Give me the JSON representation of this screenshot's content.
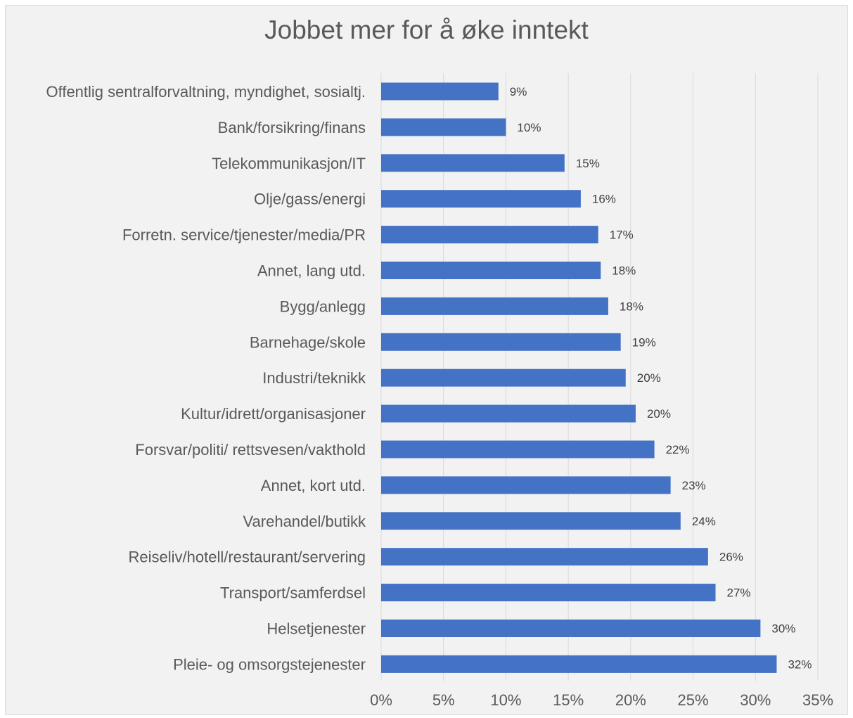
{
  "chart_data": {
    "type": "bar",
    "orientation": "horizontal",
    "title": "Jobbet mer for å øke inntekt",
    "categories": [
      "Offentlig sentralforvaltning, myndighet, sosialtj.",
      "Bank/forsikring/finans",
      "Telekommunikasjon/IT",
      "Olje/gass/energi",
      "Forretn. service/tjenester/media/PR",
      "Annet, lang utd.",
      "Bygg/anlegg",
      "Barnehage/skole",
      "Industri/teknikk",
      "Kultur/idrett/organisasjoner",
      "Forsvar/politi/ rettsvesen/vakthold",
      "Annet, kort utd.",
      "Varehandel/butikk",
      "Reiseliv/hotell/restaurant/servering",
      "Transport/samferdsel",
      "Helsetjenester",
      "Pleie- og omsorgstejenester"
    ],
    "values": [
      9.4,
      10.0,
      14.7,
      16.0,
      17.4,
      17.6,
      18.2,
      19.2,
      19.6,
      20.4,
      21.9,
      23.2,
      24.0,
      26.2,
      26.8,
      30.4,
      31.7
    ],
    "data_labels": [
      "9%",
      "10%",
      "15%",
      "16%",
      "17%",
      "18%",
      "18%",
      "19%",
      "20%",
      "20%",
      "22%",
      "23%",
      "24%",
      "26%",
      "27%",
      "30%",
      "32%"
    ],
    "xlim": [
      0,
      35
    ],
    "x_ticks": [
      0,
      5,
      10,
      15,
      20,
      25,
      30,
      35
    ],
    "x_tick_labels": [
      "0%",
      "5%",
      "10%",
      "15%",
      "20%",
      "25%",
      "30%",
      "35%"
    ],
    "grid": "vertical",
    "legend": "none",
    "colors": {
      "bar": "#4472c4",
      "gridline": "#d9d9d9",
      "background": "#f2f2f2",
      "text": "#595959",
      "data_label": "#404040"
    }
  }
}
